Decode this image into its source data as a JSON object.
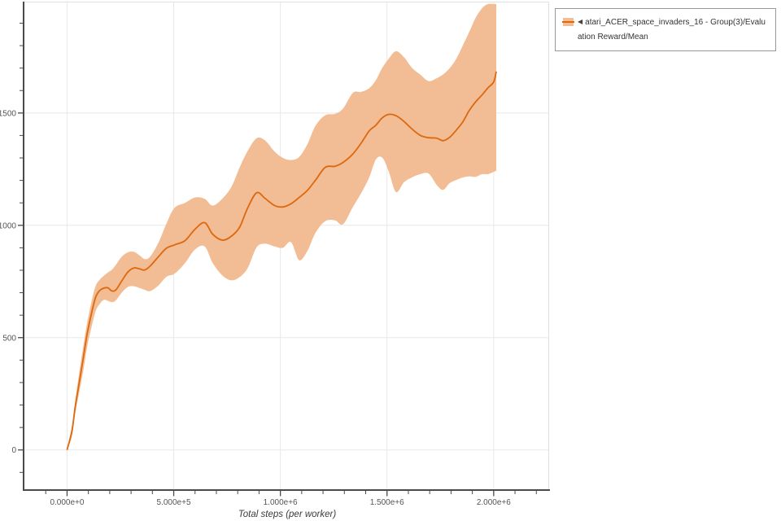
{
  "colors": {
    "line": "#dd680e",
    "band": "#f2bd94",
    "grid": "#e8e8e8",
    "spine": "#4a4a4a",
    "tick_label": "#555555",
    "axis_label": "#3b3b3b",
    "plot_border_light": "#e0e0e0",
    "legend_border": "#999999",
    "legend_text": "#333333"
  },
  "legend": {
    "collapse_icon": "◀",
    "label": "atari_ACER_space_invaders_16 - Group(3)/Evaluation Reward/Mean"
  },
  "chart_data": {
    "type": "line",
    "title": "",
    "xlabel": "Total steps (per worker)",
    "ylabel": "",
    "xlim": [
      -200000,
      2260000
    ],
    "ylim": [
      -175,
      1985
    ],
    "grid": "major",
    "legend_position": "outside-top-right",
    "x_ticks": [
      {
        "v": 0,
        "label": "0.000e+0"
      },
      {
        "v": 500000,
        "label": "5.000e+5"
      },
      {
        "v": 1000000,
        "label": "1.000e+6"
      },
      {
        "v": 1500000,
        "label": "1.500e+6"
      },
      {
        "v": 2000000,
        "label": "2.000e+6"
      }
    ],
    "y_ticks": [
      {
        "v": 0,
        "label": "0"
      },
      {
        "v": 500,
        "label": "500"
      },
      {
        "v": 1000,
        "label": "1000"
      },
      {
        "v": 1500,
        "label": "1500"
      }
    ],
    "x_minor_step": 100000,
    "y_minor_step": 100,
    "series": [
      {
        "name": "atari_ACER_space_invaders_16 - Group(3)/Evaluation Reward/Mean",
        "color": "#dd680e",
        "band_color": "#f2bd94",
        "x": [
          0,
          23000,
          38000,
          57000,
          76000,
          95000,
          115000,
          134000,
          153000,
          172000,
          191000,
          210000,
          229000,
          256000,
          286000,
          313000,
          340000,
          363000,
          389000,
          428000,
          466000,
          504000,
          553000,
          599000,
          645000,
          683000,
          729000,
          771000,
          809000,
          847000,
          889000,
          928000,
          973000,
          1012000,
          1050000,
          1088000,
          1126000,
          1164000,
          1210000,
          1256000,
          1294000,
          1340000,
          1378000,
          1416000,
          1447000,
          1477000,
          1508000,
          1542000,
          1580000,
          1618000,
          1657000,
          1695000,
          1733000,
          1763000,
          1794000,
          1825000,
          1855000,
          1886000,
          1916000,
          1947000,
          1973000,
          2000000,
          2012000
        ],
        "mean": [
          0,
          85,
          190,
          300,
          410,
          520,
          610,
          680,
          710,
          720,
          722,
          708,
          713,
          752,
          793,
          810,
          806,
          801,
          818,
          860,
          898,
          913,
          932,
          982,
          1012,
          960,
          934,
          952,
          992,
          1078,
          1145,
          1120,
          1088,
          1082,
          1096,
          1124,
          1155,
          1200,
          1258,
          1263,
          1280,
          1318,
          1365,
          1420,
          1445,
          1478,
          1494,
          1488,
          1462,
          1428,
          1400,
          1390,
          1388,
          1377,
          1392,
          1424,
          1460,
          1512,
          1550,
          1582,
          1612,
          1638,
          1685
        ],
        "lower": [
          0,
          62,
          162,
          256,
          352,
          463,
          548,
          618,
          650,
          668,
          664,
          658,
          666,
          700,
          726,
          729,
          721,
          713,
          707,
          732,
          771,
          785,
          832,
          892,
          906,
          832,
          776,
          755,
          770,
          810,
          902,
          918,
          906,
          900,
          925,
          845,
          885,
          965,
          1018,
          1022,
          1005,
          1082,
          1142,
          1212,
          1292,
          1302,
          1240,
          1148,
          1192,
          1214,
          1228,
          1230,
          1180,
          1158,
          1188,
          1202,
          1213,
          1218,
          1216,
          1228,
          1228,
          1238,
          1243
        ],
        "upper": [
          0,
          108,
          218,
          344,
          462,
          570,
          662,
          730,
          758,
          775,
          790,
          802,
          824,
          860,
          880,
          882,
          866,
          850,
          860,
          922,
          1008,
          1078,
          1100,
          1124,
          1118,
          1088,
          1120,
          1172,
          1258,
          1332,
          1388,
          1378,
          1328,
          1300,
          1291,
          1304,
          1360,
          1442,
          1490,
          1496,
          1520,
          1590,
          1594,
          1610,
          1645,
          1700,
          1742,
          1775,
          1748,
          1700,
          1670,
          1642,
          1655,
          1672,
          1700,
          1742,
          1800,
          1862,
          1925,
          1968,
          1985,
          1985,
          1985
        ]
      }
    ]
  }
}
